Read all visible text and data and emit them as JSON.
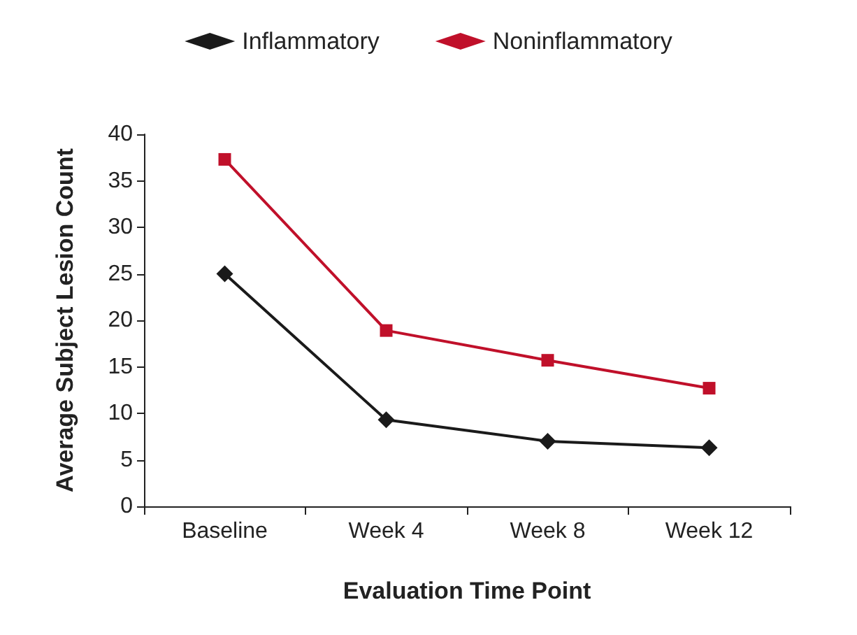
{
  "chart_data": {
    "type": "line",
    "xlabel": "Evaluation Time Point",
    "ylabel": "Average Subject Lesion Count",
    "categories": [
      "Baseline",
      "Week 4",
      "Week 8",
      "Week 12"
    ],
    "series": [
      {
        "name": "Inflammatory",
        "color": "#1a1a1a",
        "marker": "diamond",
        "values": [
          25,
          9.3,
          7,
          6.3
        ]
      },
      {
        "name": "Noninflammatory",
        "color": "#c0102a",
        "marker": "square",
        "values": [
          37.3,
          18.9,
          15.7,
          12.7
        ]
      }
    ],
    "ylim": [
      0,
      40
    ],
    "yticks": [
      0,
      5,
      10,
      15,
      20,
      25,
      30,
      35,
      40
    ],
    "grid": false,
    "legend": "top",
    "line_style": "solid"
  }
}
